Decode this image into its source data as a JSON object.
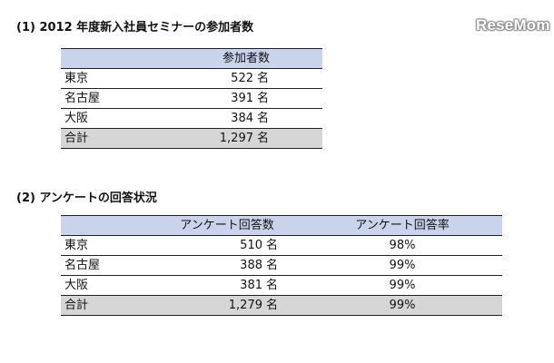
{
  "watermark": "ReseMom",
  "section1": {
    "title": "(1) 2012 年度新入社員セミナーの参加者数",
    "header": [
      "",
      "参加者数"
    ],
    "unit": "名",
    "rows": [
      {
        "label": "東京",
        "value": "522"
      },
      {
        "label": "名古屋",
        "value": "391"
      },
      {
        "label": "大阪",
        "value": "384"
      }
    ],
    "total": {
      "label": "合計",
      "value": "1,297"
    }
  },
  "section2": {
    "title": "(2) アンケートの回答状況",
    "header": [
      "",
      "アンケート回答数",
      "アンケート回答率"
    ],
    "unit": "名",
    "rows": [
      {
        "label": "東京",
        "count": "510",
        "rate": "98%"
      },
      {
        "label": "名古屋",
        "count": "388",
        "rate": "99%"
      },
      {
        "label": "大阪",
        "count": "381",
        "rate": "99%"
      }
    ],
    "total": {
      "label": "合計",
      "count": "1,279",
      "rate": "99%"
    }
  }
}
